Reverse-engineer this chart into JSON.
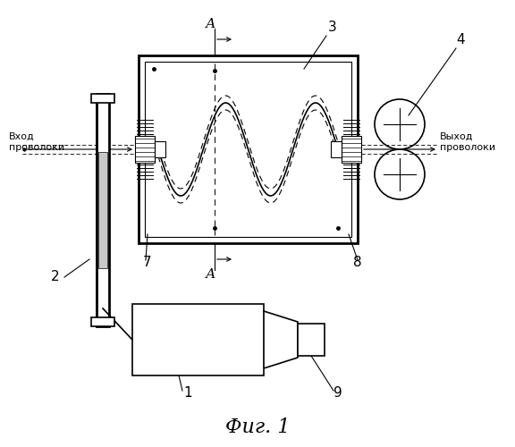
{
  "bg_color": "#ffffff",
  "line_color": "#000000",
  "fig_label": "Фиг. 1",
  "text_in": "Вход\nпроволоки",
  "text_out": "Выход\nпроволоки",
  "lbl_1": "1",
  "lbl_2": "2",
  "lbl_3": "3",
  "lbl_4": "4",
  "lbl_7": "7",
  "lbl_8": "8",
  "lbl_9": "9",
  "lbl_A": "А"
}
